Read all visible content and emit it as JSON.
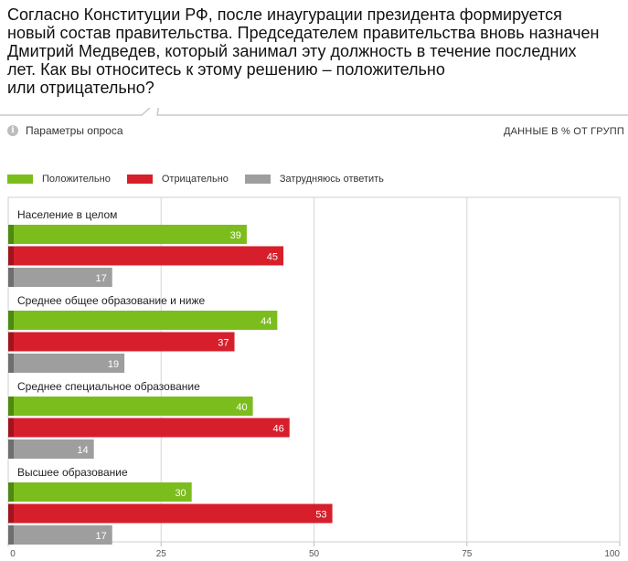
{
  "question": {
    "lines": [
      "Согласно Конституции РФ, после инаугурации президента формируется",
      "новый состав правительства. Председателем правительства вновь назначен",
      "Дмитрий Медведев, который занимал эту должность в течение последних",
      "лет. Как вы относитесь к этому решению – положительно",
      "или отрицательно?"
    ]
  },
  "controls": {
    "info_icon": "i",
    "params_label": "Параметры опроса",
    "units_label": "ДАННЫЕ В % ОТ ГРУПП"
  },
  "colors": {
    "positive": "#7cbd1e",
    "negative": "#d71f2b",
    "unsure": "#9e9e9e",
    "positive_stub": "#4e8a10",
    "negative_stub": "#a0141e",
    "unsure_stub": "#6f6f6f"
  },
  "chart_data": {
    "type": "bar",
    "orientation": "horizontal",
    "xlim": [
      0,
      100
    ],
    "xticks": [
      0,
      25,
      50,
      75,
      100
    ],
    "grid": true,
    "legend_position": "top-left",
    "categories": [
      "Население в целом",
      "Среднее общее образование и ниже",
      "Среднее специальное образование",
      "Высшее образование"
    ],
    "series": [
      {
        "name": "Положительно",
        "key": "positive",
        "values": [
          39,
          44,
          40,
          30
        ]
      },
      {
        "name": "Отрицательно",
        "key": "negative",
        "values": [
          45,
          37,
          46,
          53
        ]
      },
      {
        "name": "Затрудняюсь ответить",
        "key": "unsure",
        "values": [
          17,
          19,
          14,
          17
        ]
      }
    ]
  }
}
